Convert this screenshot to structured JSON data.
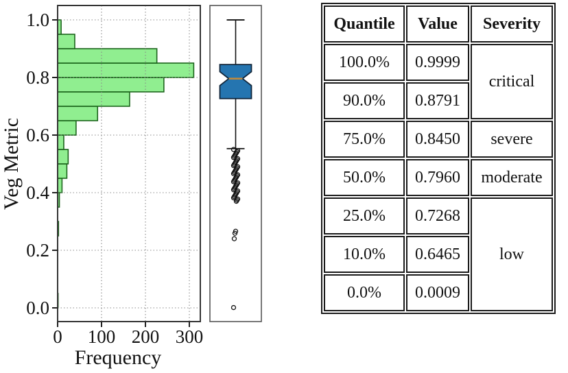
{
  "accent_colors": {
    "hist_fill": "#90ee90",
    "hist_edge": "#1c641c",
    "box_fill": "#2575b0",
    "box_edge": "#10253a",
    "median_color": "#c08a3e",
    "grid_color": "#8a8a8a",
    "spine_color": "#333333"
  },
  "chart_data": [
    {
      "type": "bar",
      "subtype": "horizontal_histogram",
      "title": "",
      "xlabel": "Frequency",
      "ylabel": "Veg Metric",
      "xlim": [
        0,
        325
      ],
      "ylim": [
        -0.05,
        1.05
      ],
      "grid": true,
      "xticks": [
        {
          "v": 0,
          "label": "0"
        },
        {
          "v": 100,
          "label": "100"
        },
        {
          "v": 200,
          "label": "200"
        },
        {
          "v": 300,
          "label": "300"
        }
      ],
      "yticks": [
        {
          "v": 1.0,
          "label": "1.0"
        },
        {
          "v": 0.8,
          "label": "0.8"
        },
        {
          "v": 0.6,
          "label": "0.6"
        },
        {
          "v": 0.4,
          "label": "0.4"
        },
        {
          "v": 0.2,
          "label": "0.2"
        },
        {
          "v": 0.0,
          "label": "0.0"
        }
      ],
      "bins": [
        {
          "lo": 0.0,
          "hi": 0.05,
          "freq": 1
        },
        {
          "lo": 0.05,
          "hi": 0.1,
          "freq": 0
        },
        {
          "lo": 0.1,
          "hi": 0.15,
          "freq": 0
        },
        {
          "lo": 0.15,
          "hi": 0.2,
          "freq": 0
        },
        {
          "lo": 0.2,
          "hi": 0.25,
          "freq": 0
        },
        {
          "lo": 0.25,
          "hi": 0.3,
          "freq": 2
        },
        {
          "lo": 0.3,
          "hi": 0.35,
          "freq": 0
        },
        {
          "lo": 0.35,
          "hi": 0.4,
          "freq": 4
        },
        {
          "lo": 0.4,
          "hi": 0.45,
          "freq": 10
        },
        {
          "lo": 0.45,
          "hi": 0.5,
          "freq": 21
        },
        {
          "lo": 0.5,
          "hi": 0.55,
          "freq": 24
        },
        {
          "lo": 0.55,
          "hi": 0.6,
          "freq": 14
        },
        {
          "lo": 0.6,
          "hi": 0.65,
          "freq": 42
        },
        {
          "lo": 0.65,
          "hi": 0.7,
          "freq": 91
        },
        {
          "lo": 0.7,
          "hi": 0.75,
          "freq": 164
        },
        {
          "lo": 0.75,
          "hi": 0.8,
          "freq": 242
        },
        {
          "lo": 0.8,
          "hi": 0.85,
          "freq": 310
        },
        {
          "lo": 0.85,
          "hi": 0.9,
          "freq": 226
        },
        {
          "lo": 0.9,
          "hi": 0.95,
          "freq": 39
        },
        {
          "lo": 0.95,
          "hi": 1.0,
          "freq": 8
        }
      ]
    },
    {
      "type": "boxplot",
      "orientation": "vertical",
      "notch": true,
      "stats": {
        "whisker_high": 0.9999,
        "q3": 0.845,
        "median": 0.796,
        "q1": 0.7268,
        "whisker_low": 0.553
      },
      "notch_half_height": 0.024,
      "outliers": [
        0.55,
        0.546,
        0.542,
        0.538,
        0.534,
        0.53,
        0.526,
        0.522,
        0.518,
        0.514,
        0.51,
        0.506,
        0.502,
        0.498,
        0.494,
        0.49,
        0.486,
        0.482,
        0.478,
        0.474,
        0.47,
        0.466,
        0.462,
        0.458,
        0.454,
        0.45,
        0.446,
        0.442,
        0.438,
        0.434,
        0.43,
        0.426,
        0.422,
        0.418,
        0.414,
        0.41,
        0.406,
        0.402,
        0.398,
        0.394,
        0.39,
        0.386,
        0.382,
        0.378,
        0.374,
        0.37,
        0.266,
        0.259,
        0.24,
        0.001
      ]
    }
  ],
  "table": {
    "headers": [
      "Quantile",
      "Value",
      "Severity"
    ],
    "rows": [
      {
        "quantile": "100.0%",
        "value": "0.9999"
      },
      {
        "quantile": "90.0%",
        "value": "0.8791"
      },
      {
        "quantile": "75.0%",
        "value": "0.8450"
      },
      {
        "quantile": "50.0%",
        "value": "0.7960"
      },
      {
        "quantile": "25.0%",
        "value": "0.7268"
      },
      {
        "quantile": "10.0%",
        "value": "0.6465"
      },
      {
        "quantile": "0.0%",
        "value": "0.0009"
      }
    ],
    "severity_groups": [
      {
        "label": "critical",
        "span": 2
      },
      {
        "label": "severe",
        "span": 1
      },
      {
        "label": "moderate",
        "span": 1
      },
      {
        "label": "low",
        "span": 3
      }
    ]
  }
}
